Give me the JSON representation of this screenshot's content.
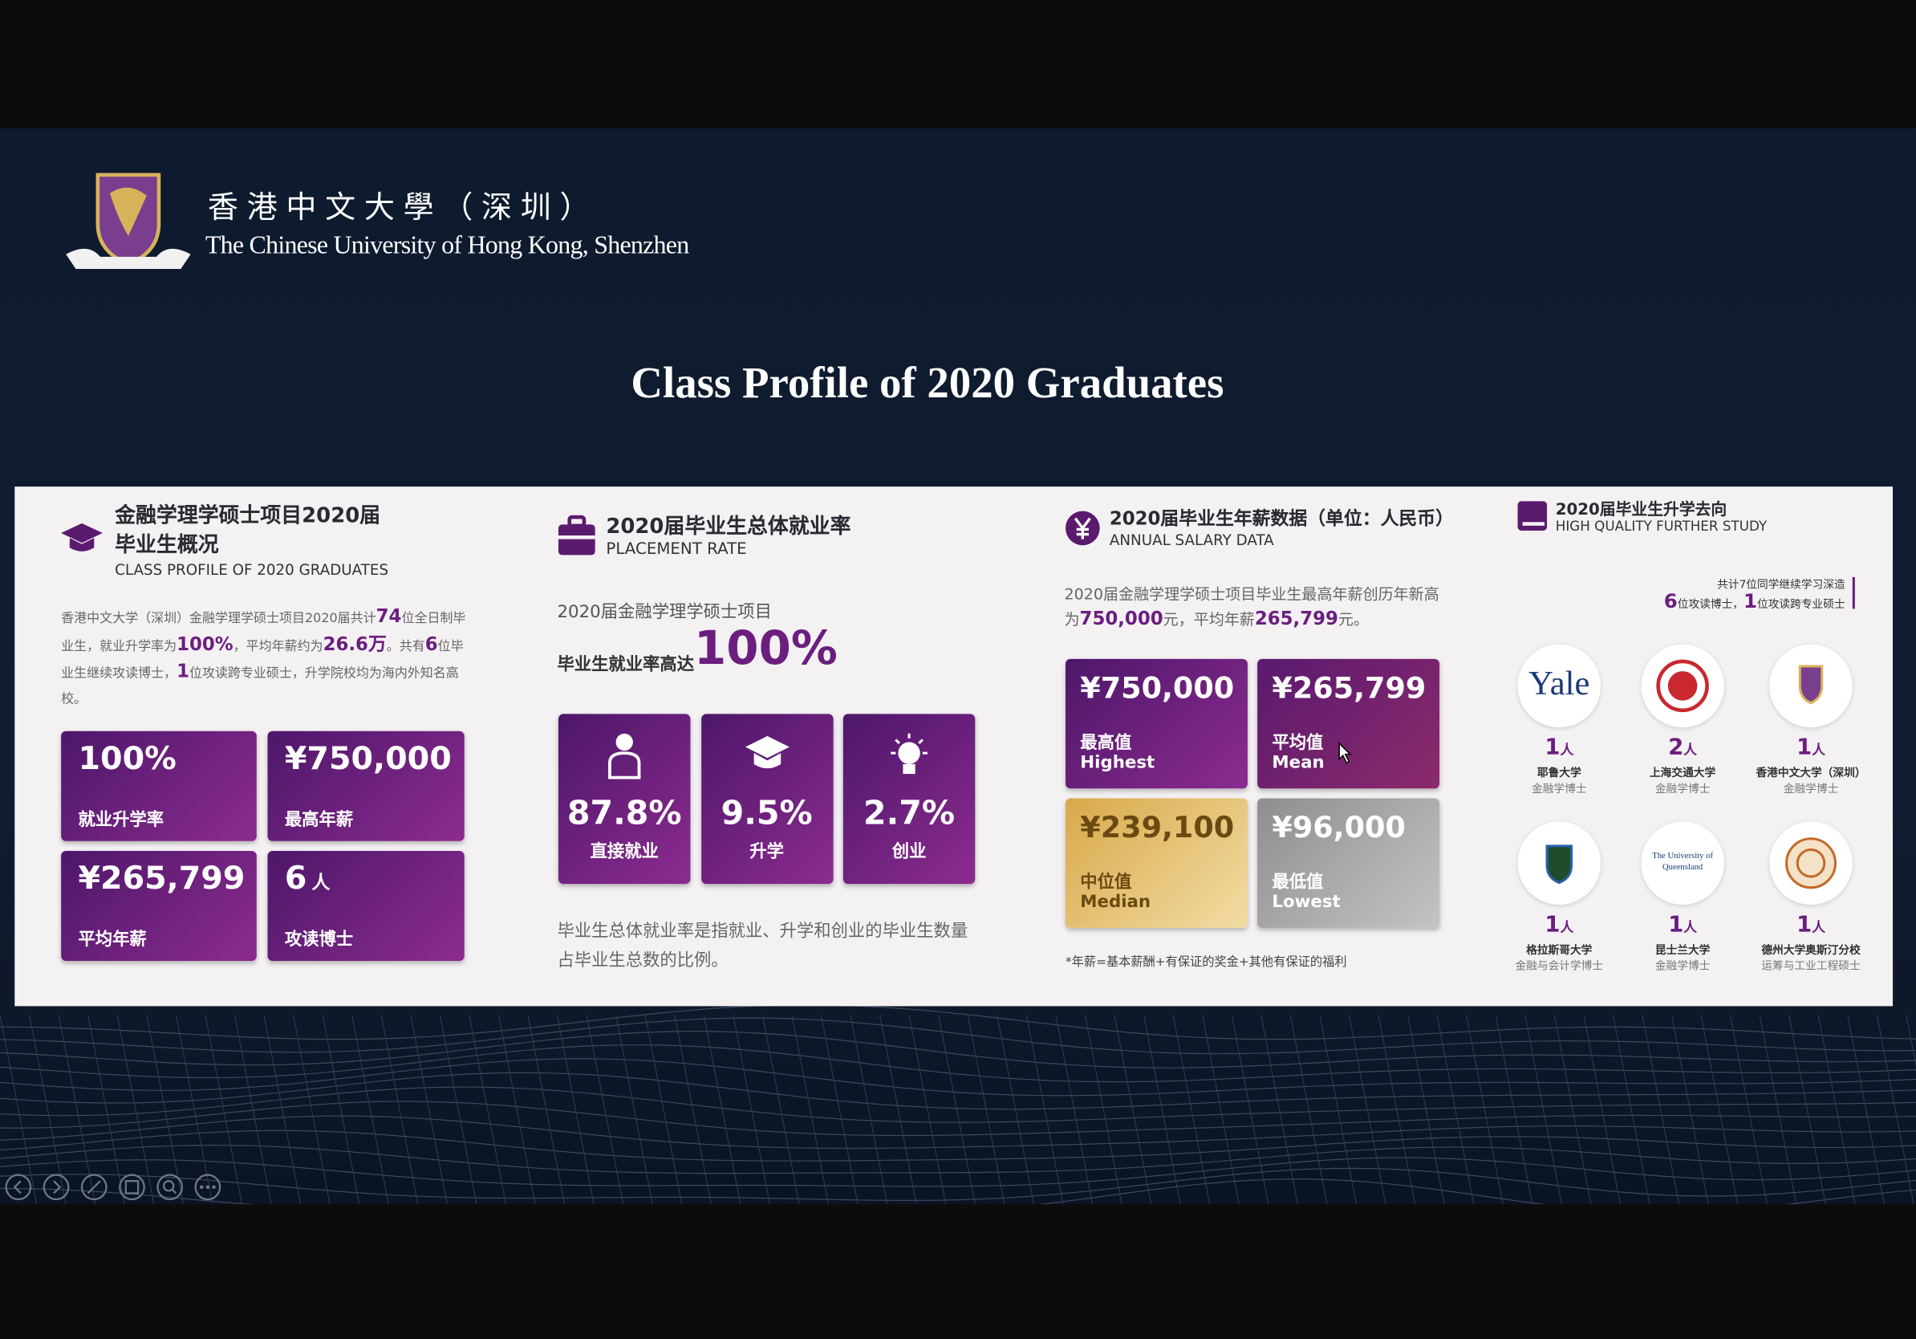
{
  "header": {
    "name_cn": "香港中文大學（深圳）",
    "name_en": "The Chinese University of Hong Kong, Shenzhen"
  },
  "title": "Class Profile of 2020 Graduates",
  "profile": {
    "title_cn": [
      "金融学理学硕士项目2020届",
      "毕业生概况"
    ],
    "title_en": "CLASS PROFILE OF 2020 GRADUATES",
    "paragraph": [
      "香港中文大学（深圳）金融学理学硕士项目2020届共计",
      "74",
      "位全日制毕业生，就业升学率为",
      "100%",
      "，平均年薪约为",
      "26.6万",
      "。共有",
      "6",
      "位毕业生继续攻读博士，",
      "1",
      "位攻读跨专业硕士，升学院校均为海内外知名高校。"
    ],
    "cards": [
      {
        "value": "100%",
        "label": "就业升学率"
      },
      {
        "value": "¥750,000",
        "label": "最高年薪"
      },
      {
        "value": "¥265,799",
        "label": "平均年薪"
      },
      {
        "value": "6",
        "unit": "人",
        "label": "攻读博士"
      }
    ]
  },
  "placement": {
    "title_cn": "2020届毕业生总体就业率",
    "title_en": "PLACEMENT RATE",
    "line1": "2020届金融学理学硕士项目",
    "line2": "毕业生就业率高达",
    "rate": "100%",
    "cards": [
      {
        "value": "87.8%",
        "label": "直接就业"
      },
      {
        "value": "9.5%",
        "label": "升学"
      },
      {
        "value": "2.7%",
        "label": "创业"
      }
    ],
    "note": "毕业生总体就业率是指就业、升学和创业的毕业生数量占毕业生总数的比例。"
  },
  "salary": {
    "title_cn": "2020届毕业生年薪数据（单位：人民币）",
    "title_en": "ANNUAL SALARY DATA",
    "paragraph": [
      "2020届金融学理学硕士项目毕业生最高年薪创历年新高为",
      "750,000",
      "元，平均年薪",
      "265,799",
      "元。"
    ],
    "cards": [
      {
        "value": "¥750,000",
        "label_cn": "最高值",
        "label_en": "Highest"
      },
      {
        "value": "¥265,799",
        "label_cn": "平均值",
        "label_en": "Mean"
      },
      {
        "value": "¥239,100",
        "label_cn": "中位值",
        "label_en": "Median"
      },
      {
        "value": "¥96,000",
        "label_cn": "最低值",
        "label_en": "Lowest"
      }
    ],
    "footnote": "*年薪=基本薪酬+有保证的奖金+其他有保证的福利"
  },
  "study": {
    "title_cn": "2020届毕业生升学去向",
    "title_en": "HIGH QUALITY FURTHER STUDY",
    "summary_line1": "共计7位同学继续学习深造",
    "summary": [
      "6",
      "位攻读博士，",
      "1",
      "位攻读跨专业硕士"
    ],
    "schools": [
      {
        "logo": "Yale",
        "count": "1",
        "unit": "人",
        "name": "耶鲁大学",
        "program": "金融学博士"
      },
      {
        "count": "2",
        "unit": "人",
        "name": "上海交通大学",
        "program": "金融学博士"
      },
      {
        "count": "1",
        "unit": "人",
        "name": "香港中文大学（深圳）",
        "program": "金融学博士"
      },
      {
        "count": "1",
        "unit": "人",
        "name": "格拉斯哥大学",
        "program": "金融与会计学博士"
      },
      {
        "logo": "The University of Queensland",
        "count": "1",
        "unit": "人",
        "name": "昆士兰大学",
        "program": "金融学博士"
      },
      {
        "count": "1",
        "unit": "人",
        "name": "德州大学奥斯汀分校",
        "program": "运筹与工业工程硕士"
      }
    ]
  }
}
